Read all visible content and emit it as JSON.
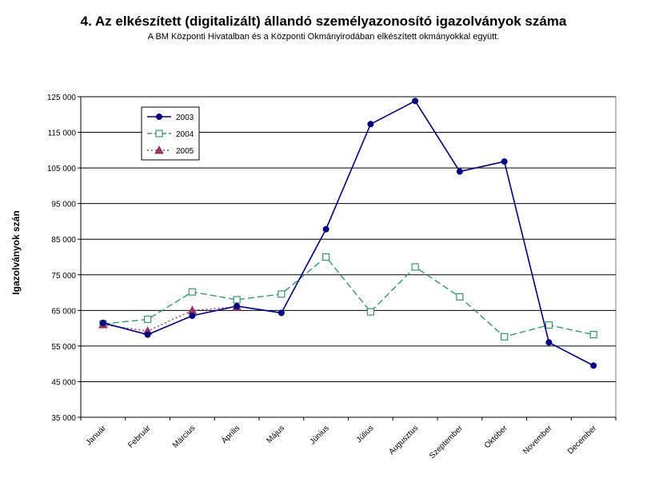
{
  "chart_data": {
    "type": "line",
    "title": "4. Az elkészített (digitalizált) állandó személyazonosító igazolványok száma",
    "subtitle": "A BM Központi Hivatalban és a Központi Okmányirodában elkészített okmányokkal együtt.",
    "xlabel": "",
    "ylabel": "Igazolványok szán",
    "categories": [
      "Január",
      "Február",
      "Március",
      "Április",
      "Május",
      "Június",
      "Július",
      "Augusztus",
      "Szeptember",
      "Október",
      "November",
      "December"
    ],
    "ylim": [
      35000,
      125000
    ],
    "yticks": [
      35000,
      45000,
      55000,
      65000,
      75000,
      85000,
      95000,
      105000,
      115000,
      125000
    ],
    "ytick_labels": [
      "35 000",
      "45 000",
      "55 000",
      "65 000",
      "75 000",
      "85 000",
      "95 000",
      "105 000",
      "115 000",
      "125 000"
    ],
    "grid": "horizontal",
    "legend_position": "top-left",
    "series": [
      {
        "name": "2003",
        "color": "#000080",
        "line": "solid",
        "marker": "circle",
        "values": [
          61500,
          58200,
          63500,
          66200,
          64300,
          87800,
          117300,
          123800,
          104000,
          106800,
          56000,
          49500
        ]
      },
      {
        "name": "2004",
        "color": "#339966",
        "line": "dashed",
        "marker": "open-square",
        "values": [
          61200,
          62500,
          70200,
          68000,
          69600,
          80000,
          64600,
          77200,
          68800,
          57600,
          60900,
          58200
        ]
      },
      {
        "name": "2005",
        "color": "#993366",
        "line": "dotted",
        "marker": "triangle",
        "values": [
          61000,
          59200,
          65000,
          66000,
          null,
          null,
          null,
          null,
          null,
          null,
          null,
          null
        ]
      }
    ]
  }
}
